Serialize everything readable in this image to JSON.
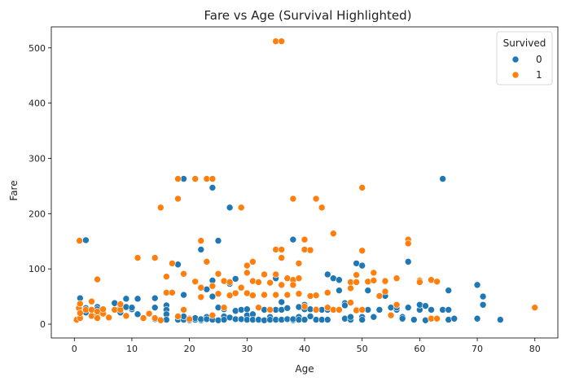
{
  "chart_data": {
    "type": "scatter",
    "title": "Fare vs Age (Survival Highlighted)",
    "xlabel": "Age",
    "ylabel": "Fare",
    "xlim": [
      -4,
      84
    ],
    "ylim": [
      -25,
      538
    ],
    "xticks": [
      0,
      10,
      20,
      30,
      40,
      50,
      60,
      70,
      80
    ],
    "yticks": [
      0,
      100,
      200,
      300,
      400,
      500
    ],
    "grid": false,
    "legend": {
      "title": "Survived",
      "placement": "top-right"
    },
    "series": [
      {
        "name": "0",
        "color": "#1f77b4",
        "points": [
          [
            2,
            152
          ],
          [
            1,
            47
          ],
          [
            2,
            29
          ],
          [
            2,
            21
          ],
          [
            3,
            25
          ],
          [
            4,
            31
          ],
          [
            4,
            27
          ],
          [
            7,
            38
          ],
          [
            8,
            21
          ],
          [
            8,
            29
          ],
          [
            9,
            31
          ],
          [
            9,
            46
          ],
          [
            10,
            27
          ],
          [
            10,
            30
          ],
          [
            11,
            18
          ],
          [
            11,
            46
          ],
          [
            14,
            47
          ],
          [
            14,
            30
          ],
          [
            14,
            9
          ],
          [
            15,
            8
          ],
          [
            16,
            34
          ],
          [
            16,
            26
          ],
          [
            16,
            18
          ],
          [
            16,
            8
          ],
          [
            17,
            110
          ],
          [
            18,
            8
          ],
          [
            18,
            108
          ],
          [
            19,
            263
          ],
          [
            19,
            53
          ],
          [
            19,
            8
          ],
          [
            19,
            14
          ],
          [
            20,
            7
          ],
          [
            20,
            10
          ],
          [
            21,
            77
          ],
          [
            21,
            8
          ],
          [
            21,
            11
          ],
          [
            22,
            135
          ],
          [
            22,
            7
          ],
          [
            22,
            9
          ],
          [
            23,
            63
          ],
          [
            23,
            13
          ],
          [
            23,
            9
          ],
          [
            24,
            247
          ],
          [
            24,
            79
          ],
          [
            24,
            50
          ],
          [
            24,
            8
          ],
          [
            25,
            151
          ],
          [
            25,
            30
          ],
          [
            25,
            7
          ],
          [
            26,
            27
          ],
          [
            26,
            14
          ],
          [
            26,
            8
          ],
          [
            27,
            211
          ],
          [
            27,
            73
          ],
          [
            27,
            12
          ],
          [
            28,
            82
          ],
          [
            28,
            9
          ],
          [
            28,
            24
          ],
          [
            29,
            26
          ],
          [
            29,
            8
          ],
          [
            29,
            9
          ],
          [
            30,
            27
          ],
          [
            30,
            16
          ],
          [
            30,
            8
          ],
          [
            31,
            52
          ],
          [
            31,
            18
          ],
          [
            31,
            8
          ],
          [
            32,
            9
          ],
          [
            32,
            30
          ],
          [
            32,
            8
          ],
          [
            33,
            26
          ],
          [
            33,
            7
          ],
          [
            34,
            13
          ],
          [
            34,
            8
          ],
          [
            35,
            83
          ],
          [
            35,
            26
          ],
          [
            35,
            8
          ],
          [
            36,
            40
          ],
          [
            36,
            26
          ],
          [
            36,
            8
          ],
          [
            37,
            29
          ],
          [
            37,
            9
          ],
          [
            38,
            153
          ],
          [
            38,
            7
          ],
          [
            38,
            9
          ],
          [
            39,
            31
          ],
          [
            39,
            13
          ],
          [
            39,
            8
          ],
          [
            40,
            27
          ],
          [
            40,
            8
          ],
          [
            40,
            35
          ],
          [
            41,
            27
          ],
          [
            41,
            14
          ],
          [
            42,
            27
          ],
          [
            42,
            8
          ],
          [
            43,
            26
          ],
          [
            43,
            8
          ],
          [
            44,
            26
          ],
          [
            44,
            90
          ],
          [
            44,
            8
          ],
          [
            45,
            83
          ],
          [
            45,
            26
          ],
          [
            46,
            80
          ],
          [
            46,
            61
          ],
          [
            46,
            26
          ],
          [
            47,
            10
          ],
          [
            47,
            38
          ],
          [
            47,
            34
          ],
          [
            48,
            8
          ],
          [
            48,
            13
          ],
          [
            49,
            110
          ],
          [
            49,
            26
          ],
          [
            50,
            106
          ],
          [
            50,
            13
          ],
          [
            50,
            8
          ],
          [
            51,
            61
          ],
          [
            51,
            26
          ],
          [
            52,
            13
          ],
          [
            52,
            79
          ],
          [
            53,
            26
          ],
          [
            54,
            77
          ],
          [
            54,
            51
          ],
          [
            55,
            30
          ],
          [
            56,
            26
          ],
          [
            56,
            30
          ],
          [
            57,
            13
          ],
          [
            57,
            10
          ],
          [
            58,
            113
          ],
          [
            58,
            30
          ],
          [
            59,
            8
          ],
          [
            60,
            26
          ],
          [
            60,
            35
          ],
          [
            61,
            33
          ],
          [
            61,
            7
          ],
          [
            62,
            26
          ],
          [
            62,
            10
          ],
          [
            64,
            263
          ],
          [
            64,
            26
          ],
          [
            65,
            61
          ],
          [
            65,
            26
          ],
          [
            65,
            8
          ],
          [
            66,
            10
          ],
          [
            70,
            71
          ],
          [
            70,
            10
          ],
          [
            71,
            50
          ],
          [
            71,
            35
          ],
          [
            74,
            8
          ]
        ]
      },
      {
        "name": "1",
        "color": "#ff7f0e",
        "points": [
          [
            0.4,
            8
          ],
          [
            0.8,
            29
          ],
          [
            0.9,
            151
          ],
          [
            1,
            11
          ],
          [
            1,
            37
          ],
          [
            1,
            20
          ],
          [
            2,
            26
          ],
          [
            3,
            15
          ],
          [
            3,
            41
          ],
          [
            3,
            26
          ],
          [
            4,
            81
          ],
          [
            4,
            16
          ],
          [
            4,
            23
          ],
          [
            4,
            11
          ],
          [
            5,
            19
          ],
          [
            5,
            27
          ],
          [
            6,
            12
          ],
          [
            7,
            26
          ],
          [
            8,
            26
          ],
          [
            8,
            36
          ],
          [
            9,
            15
          ],
          [
            11,
            120
          ],
          [
            12,
            11
          ],
          [
            13,
            19
          ],
          [
            14,
            11
          ],
          [
            14,
            120
          ],
          [
            15,
            211
          ],
          [
            15,
            7
          ],
          [
            16,
            57
          ],
          [
            16,
            86
          ],
          [
            17,
            110
          ],
          [
            17,
            57
          ],
          [
            18,
            263
          ],
          [
            18,
            227
          ],
          [
            18,
            14
          ],
          [
            19,
            91
          ],
          [
            19,
            26
          ],
          [
            20,
            9
          ],
          [
            21,
            263
          ],
          [
            21,
            77
          ],
          [
            22,
            151
          ],
          [
            22,
            66
          ],
          [
            22,
            49
          ],
          [
            23,
            263
          ],
          [
            23,
            113
          ],
          [
            24,
            263
          ],
          [
            24,
            69
          ],
          [
            24,
            16
          ],
          [
            25,
            91
          ],
          [
            25,
            55
          ],
          [
            26,
            78
          ],
          [
            26,
            30
          ],
          [
            27,
            76
          ],
          [
            27,
            52
          ],
          [
            28,
            56
          ],
          [
            29,
            211
          ],
          [
            29,
            66
          ],
          [
            30,
            106
          ],
          [
            30,
            93
          ],
          [
            30,
            56
          ],
          [
            31,
            113
          ],
          [
            31,
            78
          ],
          [
            31,
            52
          ],
          [
            32,
            76
          ],
          [
            32,
            30
          ],
          [
            33,
            90
          ],
          [
            33,
            53
          ],
          [
            34,
            75
          ],
          [
            34,
            26
          ],
          [
            35,
            512
          ],
          [
            35,
            135
          ],
          [
            35,
            90
          ],
          [
            35,
            53
          ],
          [
            36,
            512
          ],
          [
            36,
            135
          ],
          [
            36,
            120
          ],
          [
            36,
            71
          ],
          [
            37,
            53
          ],
          [
            37,
            83
          ],
          [
            38,
            227
          ],
          [
            38,
            80
          ],
          [
            38,
            71
          ],
          [
            39,
            110
          ],
          [
            39,
            83
          ],
          [
            39,
            55
          ],
          [
            40,
            153
          ],
          [
            40,
            135
          ],
          [
            40,
            32
          ],
          [
            41,
            134
          ],
          [
            41,
            51
          ],
          [
            42,
            227
          ],
          [
            42,
            52
          ],
          [
            42,
            26
          ],
          [
            43,
            211
          ],
          [
            44,
            57
          ],
          [
            44,
            30
          ],
          [
            45,
            164
          ],
          [
            45,
            26
          ],
          [
            46,
            26
          ],
          [
            48,
            76
          ],
          [
            48,
            65
          ],
          [
            48,
            39
          ],
          [
            49,
            89
          ],
          [
            49,
            76
          ],
          [
            49,
            25
          ],
          [
            50,
            247
          ],
          [
            50,
            133
          ],
          [
            50,
            26
          ],
          [
            51,
            77
          ],
          [
            52,
            93
          ],
          [
            52,
            79
          ],
          [
            53,
            51
          ],
          [
            54,
            59
          ],
          [
            54,
            78
          ],
          [
            55,
            16
          ],
          [
            56,
            35
          ],
          [
            56,
            83
          ],
          [
            58,
            153
          ],
          [
            58,
            146
          ],
          [
            60,
            79
          ],
          [
            60,
            76
          ],
          [
            62,
            80
          ],
          [
            62,
            10
          ],
          [
            63,
            77
          ],
          [
            63,
            10
          ],
          [
            80,
            30
          ]
        ]
      }
    ]
  }
}
